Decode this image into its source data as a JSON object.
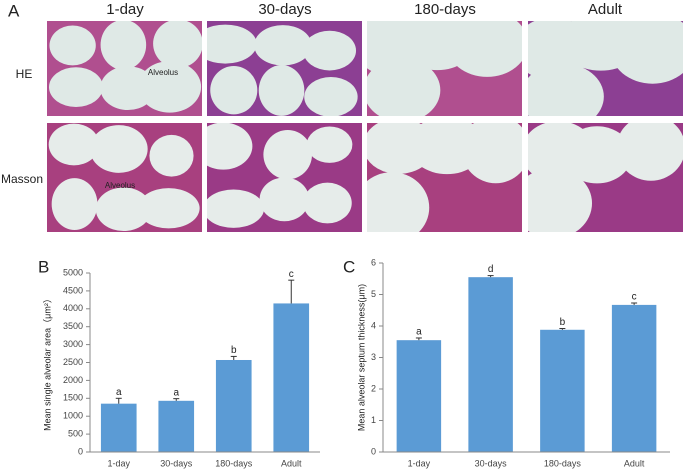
{
  "panel_a": {
    "label": "A",
    "columns": [
      "1-day",
      "30-days",
      "180-days",
      "Adult"
    ],
    "rows": [
      "HE",
      "Masson"
    ],
    "image_labels": [
      "Alveolus",
      "Alveolus"
    ]
  },
  "chart_data": [
    {
      "type": "bar",
      "panel_label": "B",
      "y_label": "Mean single alveolar area（μm²）",
      "categories": [
        "1-day",
        "30-days",
        "180-days",
        "Adult"
      ],
      "values": [
        1350,
        1430,
        2570,
        4150
      ],
      "errors": [
        150,
        60,
        100,
        650
      ],
      "annotations": [
        "a",
        "a",
        "b",
        "c"
      ],
      "color": "#5b9bd5",
      "ylim": [
        0,
        5000
      ],
      "yticks": [
        0,
        500,
        1000,
        1500,
        2000,
        2500,
        3000,
        3500,
        4000,
        4500,
        5000
      ]
    },
    {
      "type": "bar",
      "panel_label": "C",
      "y_label": "Mean alveolar septum thickness(μm)",
      "categories": [
        "1-day",
        "30-days",
        "180-days",
        "Adult"
      ],
      "values": [
        3.55,
        5.55,
        3.88,
        4.67
      ],
      "errors": [
        0.07,
        0.05,
        0.04,
        0.06
      ],
      "annotations": [
        "a",
        "d",
        "b",
        "c"
      ],
      "color": "#5b9bd5",
      "ylim": [
        0,
        6
      ],
      "yticks": [
        0,
        1,
        2,
        3,
        4,
        5,
        6
      ]
    }
  ]
}
